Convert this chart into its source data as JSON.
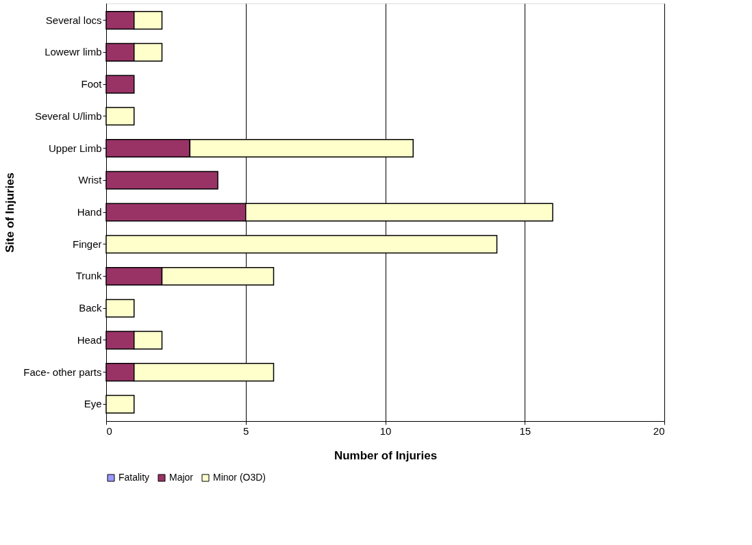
{
  "chart_data": {
    "type": "bar",
    "orientation": "horizontal",
    "stacked": true,
    "xlabel": "Number of Injuries",
    "ylabel": "Site of Injuries",
    "categories": [
      "Several locs",
      "Lowewr limb",
      "Foot",
      "Several U/limb",
      "Upper Limb",
      "Wrist",
      "Hand",
      "Finger",
      "Trunk",
      "Back",
      "Head",
      "Face- other parts",
      "Eye"
    ],
    "series": [
      {
        "name": "Fatality",
        "color": "#9999ff",
        "values": [
          0,
          0,
          0,
          0,
          0,
          0,
          0,
          0,
          0,
          0,
          0,
          0,
          0
        ]
      },
      {
        "name": "Major",
        "color": "#993366",
        "values": [
          1,
          1,
          1,
          0,
          3,
          4,
          5,
          0,
          2,
          0,
          1,
          1,
          0
        ]
      },
      {
        "name": "Minor (O3D)",
        "color": "#ffffcc",
        "values": [
          1,
          1,
          0,
          1,
          8,
          0,
          11,
          14,
          4,
          1,
          1,
          5,
          1
        ]
      }
    ],
    "xlim": [
      0,
      20
    ],
    "xticks": [
      0,
      5,
      10,
      15,
      20
    ],
    "grid": "x",
    "legend": "bottom"
  }
}
